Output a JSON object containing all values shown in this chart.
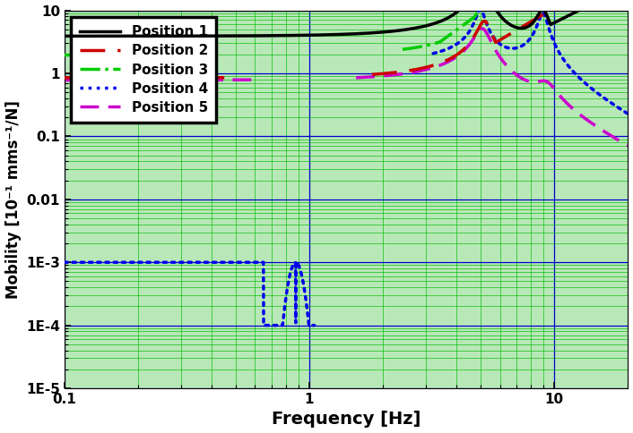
{
  "title": "",
  "xlabel": "Frequency [Hz]",
  "ylabel": "Mobility [10⁻¹ mms⁻¹/N]",
  "xlim": [
    0.1,
    20
  ],
  "ylim": [
    1e-05,
    10
  ],
  "background_color": "#b8e8b8",
  "grid_major_color": "#0000cc",
  "grid_minor_color": "#00bb00",
  "legend_labels": [
    "Position 1",
    "Position 2",
    "Position 3",
    "Position 4",
    "Position 5"
  ],
  "line_colors": [
    "#000000",
    "#cc0000",
    "#00cc00",
    "#0000ee",
    "#cc00cc"
  ],
  "line_widths": [
    2.5,
    2.5,
    2.5,
    2.5,
    2.5
  ],
  "xlabel_fontsize": 14,
  "ylabel_fontsize": 12,
  "legend_fontsize": 11,
  "tick_fontsize": 11
}
